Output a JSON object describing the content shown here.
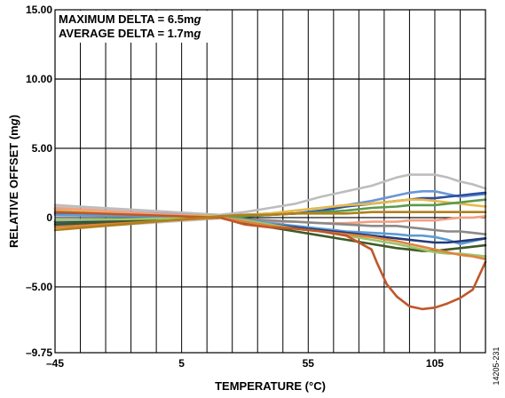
{
  "chart_data": {
    "type": "line",
    "xlabel": "TEMPERATURE (°C)",
    "ylabel_parts": [
      "RELATIVE OFFSET (m",
      "g",
      ")"
    ],
    "xlim": [
      -45,
      125
    ],
    "ylim": [
      -9.75,
      15.0
    ],
    "x_ticks": [
      {
        "value": -45,
        "label": "–45"
      },
      {
        "value": 5,
        "label": "5"
      },
      {
        "value": 55,
        "label": "55"
      },
      {
        "value": 105,
        "label": "105"
      }
    ],
    "y_ticks": [
      {
        "value": 15,
        "label": "15.00"
      },
      {
        "value": 10,
        "label": "10.00"
      },
      {
        "value": 5,
        "label": "5.00"
      },
      {
        "value": 0,
        "label": "0"
      },
      {
        "value": -5,
        "label": "–5.00"
      },
      {
        "value": -9.75,
        "label": "–9.75"
      }
    ],
    "x_grid_step": 10,
    "grid": "vertical",
    "annotations": [
      {
        "parts": [
          "MAXIMUM DELTA = 6.5m",
          "g",
          ""
        ]
      },
      {
        "parts": [
          "AVERAGE DELTA = 1.7m",
          "g",
          ""
        ]
      }
    ],
    "band": {
      "color": "#9a9a9a",
      "x": [
        -45,
        20
      ],
      "y_upper": [
        1.0,
        0.15
      ],
      "y_lower": [
        -0.9,
        -0.15
      ]
    },
    "series": [
      {
        "color": "#bdbdbd",
        "x": [
          -45,
          20,
          30,
          40,
          50,
          60,
          70,
          80,
          90,
          95,
          100,
          105,
          110,
          115,
          120,
          125
        ],
        "y": [
          0.9,
          0.2,
          0.4,
          0.7,
          1.0,
          1.5,
          1.9,
          2.3,
          2.9,
          3.1,
          3.1,
          3.1,
          2.9,
          2.6,
          2.4,
          2.1
        ]
      },
      {
        "color": "#6a96d4",
        "x": [
          -45,
          20,
          30,
          40,
          50,
          60,
          70,
          80,
          90,
          95,
          100,
          105,
          110,
          115,
          120,
          125
        ],
        "y": [
          0.6,
          0.1,
          0.2,
          0.3,
          0.5,
          0.7,
          0.9,
          1.2,
          1.6,
          1.8,
          1.9,
          1.9,
          1.7,
          1.5,
          1.6,
          1.7
        ]
      },
      {
        "color": "#2e4fa0",
        "x": [
          -45,
          20,
          30,
          40,
          50,
          60,
          70,
          80,
          90,
          95,
          100,
          105,
          110,
          115,
          120,
          125
        ],
        "y": [
          0.3,
          0.0,
          0.1,
          0.2,
          0.3,
          0.5,
          0.8,
          1.0,
          1.2,
          1.3,
          1.4,
          1.4,
          1.5,
          1.6,
          1.7,
          1.8
        ]
      },
      {
        "color": "#e8b94a",
        "x": [
          -45,
          20,
          30,
          40,
          50,
          60,
          70,
          80,
          90,
          95,
          100,
          105,
          110,
          115,
          120,
          125
        ],
        "y": [
          0.5,
          0.1,
          0.2,
          0.3,
          0.5,
          0.7,
          0.9,
          1.0,
          1.2,
          1.3,
          1.3,
          1.2,
          1.1,
          1.0,
          0.9,
          0.8
        ]
      },
      {
        "color": "#5b9b4a",
        "x": [
          -45,
          20,
          30,
          40,
          50,
          60,
          70,
          80,
          90,
          95,
          100,
          105,
          110,
          115,
          120,
          125
        ],
        "y": [
          -0.4,
          0.0,
          0.1,
          0.2,
          0.3,
          0.4,
          0.5,
          0.7,
          0.8,
          0.9,
          0.9,
          0.9,
          1.0,
          1.1,
          1.2,
          1.3
        ]
      },
      {
        "color": "#f2a082",
        "x": [
          -45,
          20,
          30,
          40,
          50,
          60,
          70,
          80,
          90,
          95,
          100,
          105,
          110,
          115,
          120,
          125
        ],
        "y": [
          0.7,
          0.0,
          -0.2,
          -0.3,
          -0.3,
          -0.4,
          -0.4,
          -0.3,
          -0.3,
          -0.2,
          -0.2,
          -0.2,
          -0.1,
          0.0,
          0.0,
          0.1
        ]
      },
      {
        "color": "#8a8a8a",
        "x": [
          -45,
          20,
          30,
          40,
          50,
          60,
          70,
          80,
          90,
          95,
          100,
          105,
          110,
          115,
          120,
          125
        ],
        "y": [
          -0.6,
          0.0,
          -0.1,
          -0.2,
          -0.3,
          -0.4,
          -0.5,
          -0.6,
          -0.6,
          -0.7,
          -0.8,
          -0.9,
          -1.0,
          -1.0,
          -1.1,
          -1.2
        ]
      },
      {
        "color": "#5b9bd5",
        "x": [
          -45,
          20,
          30,
          40,
          50,
          60,
          70,
          80,
          90,
          95,
          100,
          105,
          110,
          115,
          120,
          125
        ],
        "y": [
          0.2,
          0.0,
          -0.2,
          -0.4,
          -0.6,
          -0.8,
          -1.0,
          -1.1,
          -1.2,
          -1.3,
          -1.3,
          -1.4,
          -1.6,
          -1.9,
          -1.7,
          -1.5
        ]
      },
      {
        "color": "#243a78",
        "x": [
          -45,
          20,
          30,
          40,
          50,
          60,
          70,
          80,
          90,
          95,
          100,
          105,
          110,
          115,
          120,
          125
        ],
        "y": [
          -0.3,
          0.0,
          -0.3,
          -0.5,
          -0.7,
          -0.9,
          -1.1,
          -1.3,
          -1.5,
          -1.6,
          -1.7,
          -1.8,
          -1.8,
          -1.7,
          -1.6,
          -1.5
        ]
      },
      {
        "color": "#3f5a26",
        "x": [
          -45,
          20,
          30,
          40,
          50,
          60,
          70,
          80,
          90,
          95,
          100,
          105,
          110,
          115,
          120,
          125
        ],
        "y": [
          -0.5,
          0.0,
          -0.4,
          -0.7,
          -1.0,
          -1.3,
          -1.6,
          -1.9,
          -2.2,
          -2.3,
          -2.4,
          -2.4,
          -2.3,
          -2.2,
          -2.1,
          -2.0
        ]
      },
      {
        "color": "#9cc46b",
        "x": [
          -45,
          20,
          30,
          40,
          50,
          60,
          70,
          80,
          90,
          95,
          100,
          105,
          110,
          115,
          120,
          125
        ],
        "y": [
          -0.2,
          0.0,
          -0.2,
          -0.5,
          -0.8,
          -1.0,
          -1.3,
          -1.6,
          -1.9,
          -2.1,
          -2.3,
          -2.5,
          -2.6,
          -2.6,
          -2.7,
          -2.8
        ]
      },
      {
        "color": "#e0833c",
        "x": [
          -45,
          20,
          30,
          40,
          50,
          60,
          70,
          80,
          90,
          95,
          100,
          105,
          110,
          115,
          120,
          125
        ],
        "y": [
          -0.7,
          0.0,
          -0.3,
          -0.6,
          -0.8,
          -1.0,
          -1.2,
          -1.4,
          -1.7,
          -1.9,
          -2.1,
          -2.3,
          -2.5,
          -2.7,
          -2.8,
          -3.0
        ]
      },
      {
        "color": "#c0572a",
        "x": [
          -45,
          20,
          30,
          40,
          50,
          60,
          70,
          80,
          82,
          86,
          90,
          95,
          100,
          105,
          110,
          115,
          120,
          125
        ],
        "y": [
          0.4,
          0.0,
          -0.5,
          -0.7,
          -0.8,
          -1.0,
          -1.3,
          -2.3,
          -3.2,
          -4.8,
          -5.7,
          -6.4,
          -6.6,
          -6.5,
          -6.2,
          -5.8,
          -5.2,
          -3.2
        ]
      },
      {
        "color": "#b0801a",
        "x": [
          -45,
          20,
          30,
          40,
          50,
          60,
          70,
          80,
          90,
          95,
          100,
          105,
          110,
          115,
          120,
          125
        ],
        "y": [
          -0.9,
          0.1,
          0.2,
          0.2,
          0.3,
          0.3,
          0.3,
          0.4,
          0.4,
          0.4,
          0.4,
          0.4,
          0.4,
          0.4,
          0.4,
          0.4
        ]
      }
    ]
  },
  "figure_id": "14205-231"
}
